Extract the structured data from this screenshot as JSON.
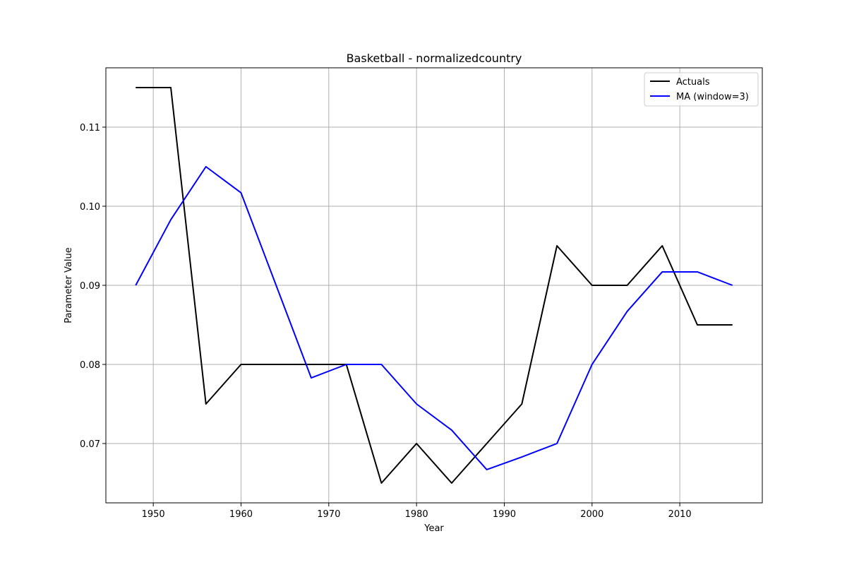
{
  "chart_data": {
    "type": "line",
    "title": "Basketball - normalizedcountry",
    "xlabel": "Year",
    "ylabel": "Parameter Value",
    "xlim": [
      1944.6,
      2019.4
    ],
    "ylim": [
      0.0625,
      0.1175
    ],
    "xticks": [
      1950,
      1960,
      1970,
      1980,
      1990,
      2000,
      2010
    ],
    "yticks": [
      0.07,
      0.08,
      0.09,
      0.1,
      0.11
    ],
    "ytick_labels": [
      "0.07",
      "0.08",
      "0.09",
      "0.10",
      "0.11"
    ],
    "grid": true,
    "legend_position": "top-right",
    "x": [
      1948,
      1952,
      1956,
      1960,
      1964,
      1968,
      1972,
      1976,
      1980,
      1984,
      1988,
      1992,
      1996,
      2000,
      2004,
      2008,
      2012,
      2016
    ],
    "series": [
      {
        "name": "Actuals",
        "color": "#000000",
        "values": [
          0.115,
          0.115,
          0.075,
          0.08,
          0.08,
          0.08,
          0.08,
          0.065,
          0.07,
          0.065,
          0.07,
          0.075,
          0.095,
          0.09,
          0.09,
          0.095,
          0.085,
          0.085
        ]
      },
      {
        "name": "MA (window=3)",
        "color": "#0000ff",
        "values": [
          0.09,
          0.0983,
          0.105,
          0.1017,
          0.09,
          0.0783,
          0.08,
          0.08,
          0.075,
          0.0717,
          0.0667,
          0.0683,
          0.07,
          0.08,
          0.0867,
          0.0917,
          0.0917,
          0.09
        ]
      }
    ]
  }
}
